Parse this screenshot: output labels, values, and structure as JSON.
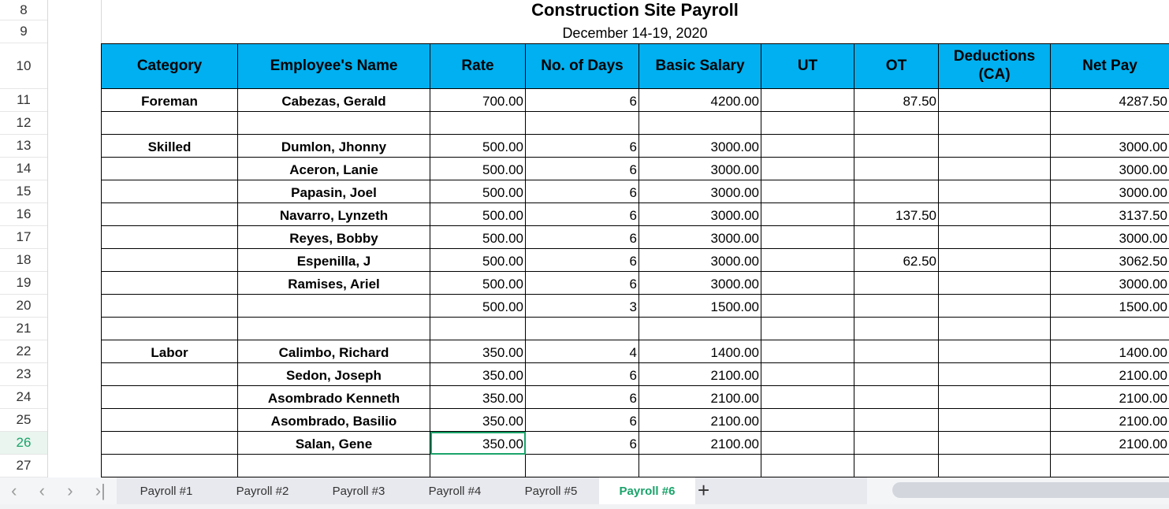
{
  "sheet": {
    "title": "Construction Site Payroll",
    "subtitle": "December 14-19, 2020"
  },
  "row_numbers": [
    "8",
    "9",
    "10",
    "11",
    "12",
    "13",
    "14",
    "15",
    "16",
    "17",
    "18",
    "19",
    "20",
    "21",
    "22",
    "23",
    "24",
    "25",
    "26",
    "27"
  ],
  "active_row": "26",
  "headers": [
    "Category",
    "Employee's Name",
    "Rate",
    "No. of Days",
    "Basic Salary",
    "UT",
    "OT",
    "Deductions (CA)",
    "Net Pay"
  ],
  "rows": [
    [
      "Foreman",
      "Cabezas, Gerald",
      "700.00",
      "6",
      "4200.00",
      "",
      "87.50",
      "",
      "4287.50"
    ],
    [
      "",
      "",
      "",
      "",
      "",
      "",
      "",
      "",
      ""
    ],
    [
      "Skilled",
      "Dumlon, Jhonny",
      "500.00",
      "6",
      "3000.00",
      "",
      "",
      "",
      "3000.00"
    ],
    [
      "",
      "Aceron, Lanie",
      "500.00",
      "6",
      "3000.00",
      "",
      "",
      "",
      "3000.00"
    ],
    [
      "",
      "Papasin, Joel",
      "500.00",
      "6",
      "3000.00",
      "",
      "",
      "",
      "3000.00"
    ],
    [
      "",
      "Navarro, Lynzeth",
      "500.00",
      "6",
      "3000.00",
      "",
      "137.50",
      "",
      "3137.50"
    ],
    [
      "",
      "Reyes, Bobby",
      "500.00",
      "6",
      "3000.00",
      "",
      "",
      "",
      "3000.00"
    ],
    [
      "",
      "Espenilla, J",
      "500.00",
      "6",
      "3000.00",
      "",
      "62.50",
      "",
      "3062.50"
    ],
    [
      "",
      "Ramises, Ariel",
      "500.00",
      "6",
      "3000.00",
      "",
      "",
      "",
      "3000.00"
    ],
    [
      "",
      "",
      "500.00",
      "3",
      "1500.00",
      "",
      "",
      "",
      "1500.00"
    ],
    [
      "",
      "",
      "",
      "",
      "",
      "",
      "",
      "",
      ""
    ],
    [
      "Labor",
      "Calimbo, Richard",
      "350.00",
      "4",
      "1400.00",
      "",
      "",
      "",
      "1400.00"
    ],
    [
      "",
      "Sedon, Joseph",
      "350.00",
      "6",
      "2100.00",
      "",
      "",
      "",
      "2100.00"
    ],
    [
      "",
      "Asombrado Kenneth",
      "350.00",
      "6",
      "2100.00",
      "",
      "",
      "",
      "2100.00"
    ],
    [
      "",
      "Asombrado, Basilio",
      "350.00",
      "6",
      "2100.00",
      "",
      "",
      "",
      "2100.00"
    ],
    [
      "",
      "Salan, Gene",
      "350.00",
      "6",
      "2100.00",
      "",
      "",
      "",
      "2100.00"
    ],
    [
      "",
      "",
      "",
      "",
      "",
      "",
      "",
      "",
      ""
    ]
  ],
  "tabs": [
    "Payroll #1",
    "Payroll #2",
    "Payroll #3",
    "Payroll #4",
    "Payroll #5",
    "Payroll #6"
  ],
  "active_tab": "Payroll #6",
  "nav_icons": [
    "first-sheet-icon",
    "prev-sheet-icon",
    "next-sheet-icon",
    "last-sheet-icon"
  ],
  "colors": {
    "header": "#00b0f0",
    "accent": "#1aa36a"
  }
}
